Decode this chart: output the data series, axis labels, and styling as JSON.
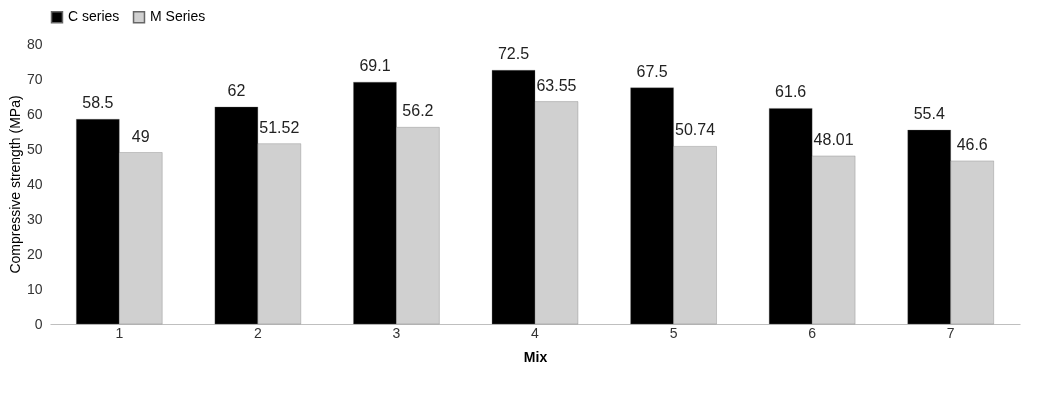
{
  "chart_data": {
    "type": "bar",
    "xlabel": "Mix",
    "ylabel": "Compressive strength (MPa)",
    "categories": [
      "1",
      "2",
      "3",
      "4",
      "5",
      "6",
      "7"
    ],
    "series": [
      {
        "name": "C series",
        "color": "#000000",
        "values": [
          58.5,
          62,
          69.1,
          72.5,
          67.5,
          61.6,
          55.4
        ]
      },
      {
        "name": "M Series",
        "color": "#d0d0d0",
        "values": [
          49,
          51.52,
          56.2,
          63.55,
          50.74,
          48.01,
          46.6
        ]
      }
    ],
    "ylim": [
      0,
      80
    ],
    "yticks": [
      0,
      10,
      20,
      30,
      40,
      50,
      60,
      70,
      80
    ],
    "grid": false,
    "legend": "top",
    "data_labels": true
  }
}
